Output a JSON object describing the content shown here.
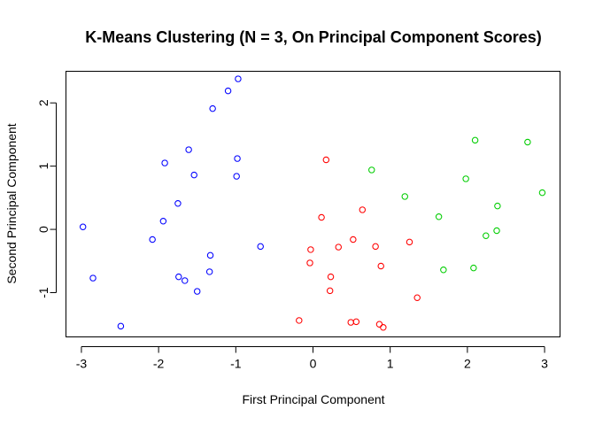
{
  "chart_data": {
    "type": "scatter",
    "title": "K-Means Clustering (N = 3, On Principal Component Scores)",
    "xlabel": "First Principal Component",
    "ylabel": "Second Principal Component",
    "xlim": [
      -3.2,
      3.2
    ],
    "ylim": [
      -1.7,
      2.5
    ],
    "xticks": [
      {
        "value": -3,
        "label": "-3"
      },
      {
        "value": -2,
        "label": "-2"
      },
      {
        "value": -1,
        "label": "-1"
      },
      {
        "value": 0,
        "label": "0"
      },
      {
        "value": 1,
        "label": "1"
      },
      {
        "value": 2,
        "label": "2"
      },
      {
        "value": 3,
        "label": "3"
      }
    ],
    "yticks": [
      {
        "value": -1,
        "label": "-1"
      },
      {
        "value": 0,
        "label": "0"
      },
      {
        "value": 1,
        "label": "1"
      },
      {
        "value": 2,
        "label": "2"
      }
    ],
    "grid": false,
    "legend": "none",
    "series": [
      {
        "color": "#0000ff",
        "points": [
          {
            "x": -2.98,
            "y": 0.04
          },
          {
            "x": -2.85,
            "y": -0.77
          },
          {
            "x": -2.49,
            "y": -1.53
          },
          {
            "x": -2.08,
            "y": -0.16
          },
          {
            "x": -1.94,
            "y": 0.13
          },
          {
            "x": -1.92,
            "y": 1.05
          },
          {
            "x": -1.75,
            "y": 0.41
          },
          {
            "x": -1.74,
            "y": -0.75
          },
          {
            "x": -1.66,
            "y": -0.81
          },
          {
            "x": -1.61,
            "y": 1.26
          },
          {
            "x": -1.54,
            "y": 0.86
          },
          {
            "x": -1.5,
            "y": -0.98
          },
          {
            "x": -1.34,
            "y": -0.67
          },
          {
            "x": -1.33,
            "y": -0.41
          },
          {
            "x": -1.3,
            "y": 1.91
          },
          {
            "x": -1.1,
            "y": 2.19
          },
          {
            "x": -0.99,
            "y": 0.84
          },
          {
            "x": -0.98,
            "y": 1.12
          },
          {
            "x": -0.97,
            "y": 2.38
          },
          {
            "x": -0.68,
            "y": -0.27
          }
        ]
      },
      {
        "color": "#ff0000",
        "points": [
          {
            "x": -0.18,
            "y": -1.44
          },
          {
            "x": -0.04,
            "y": -0.53
          },
          {
            "x": -0.03,
            "y": -0.32
          },
          {
            "x": 0.11,
            "y": 0.19
          },
          {
            "x": 0.17,
            "y": 1.1
          },
          {
            "x": 0.22,
            "y": -0.97
          },
          {
            "x": 0.23,
            "y": -0.75
          },
          {
            "x": 0.33,
            "y": -0.28
          },
          {
            "x": 0.49,
            "y": -1.47
          },
          {
            "x": 0.52,
            "y": -0.16
          },
          {
            "x": 0.56,
            "y": -1.46
          },
          {
            "x": 0.64,
            "y": 0.31
          },
          {
            "x": 0.81,
            "y": -0.27
          },
          {
            "x": 0.86,
            "y": -1.5
          },
          {
            "x": 0.88,
            "y": -0.58
          },
          {
            "x": 0.91,
            "y": -1.55
          },
          {
            "x": 1.25,
            "y": -0.2
          },
          {
            "x": 1.35,
            "y": -1.08
          }
        ]
      },
      {
        "color": "#00cd00",
        "points": [
          {
            "x": 0.76,
            "y": 0.94
          },
          {
            "x": 1.19,
            "y": 0.52
          },
          {
            "x": 1.63,
            "y": 0.2
          },
          {
            "x": 1.69,
            "y": -0.64
          },
          {
            "x": 1.98,
            "y": 0.8
          },
          {
            "x": 2.08,
            "y": -0.61
          },
          {
            "x": 2.1,
            "y": 1.41
          },
          {
            "x": 2.24,
            "y": -0.1
          },
          {
            "x": 2.38,
            "y": -0.02
          },
          {
            "x": 2.39,
            "y": 0.37
          },
          {
            "x": 2.78,
            "y": 1.38
          },
          {
            "x": 2.97,
            "y": 0.58
          }
        ]
      }
    ]
  }
}
